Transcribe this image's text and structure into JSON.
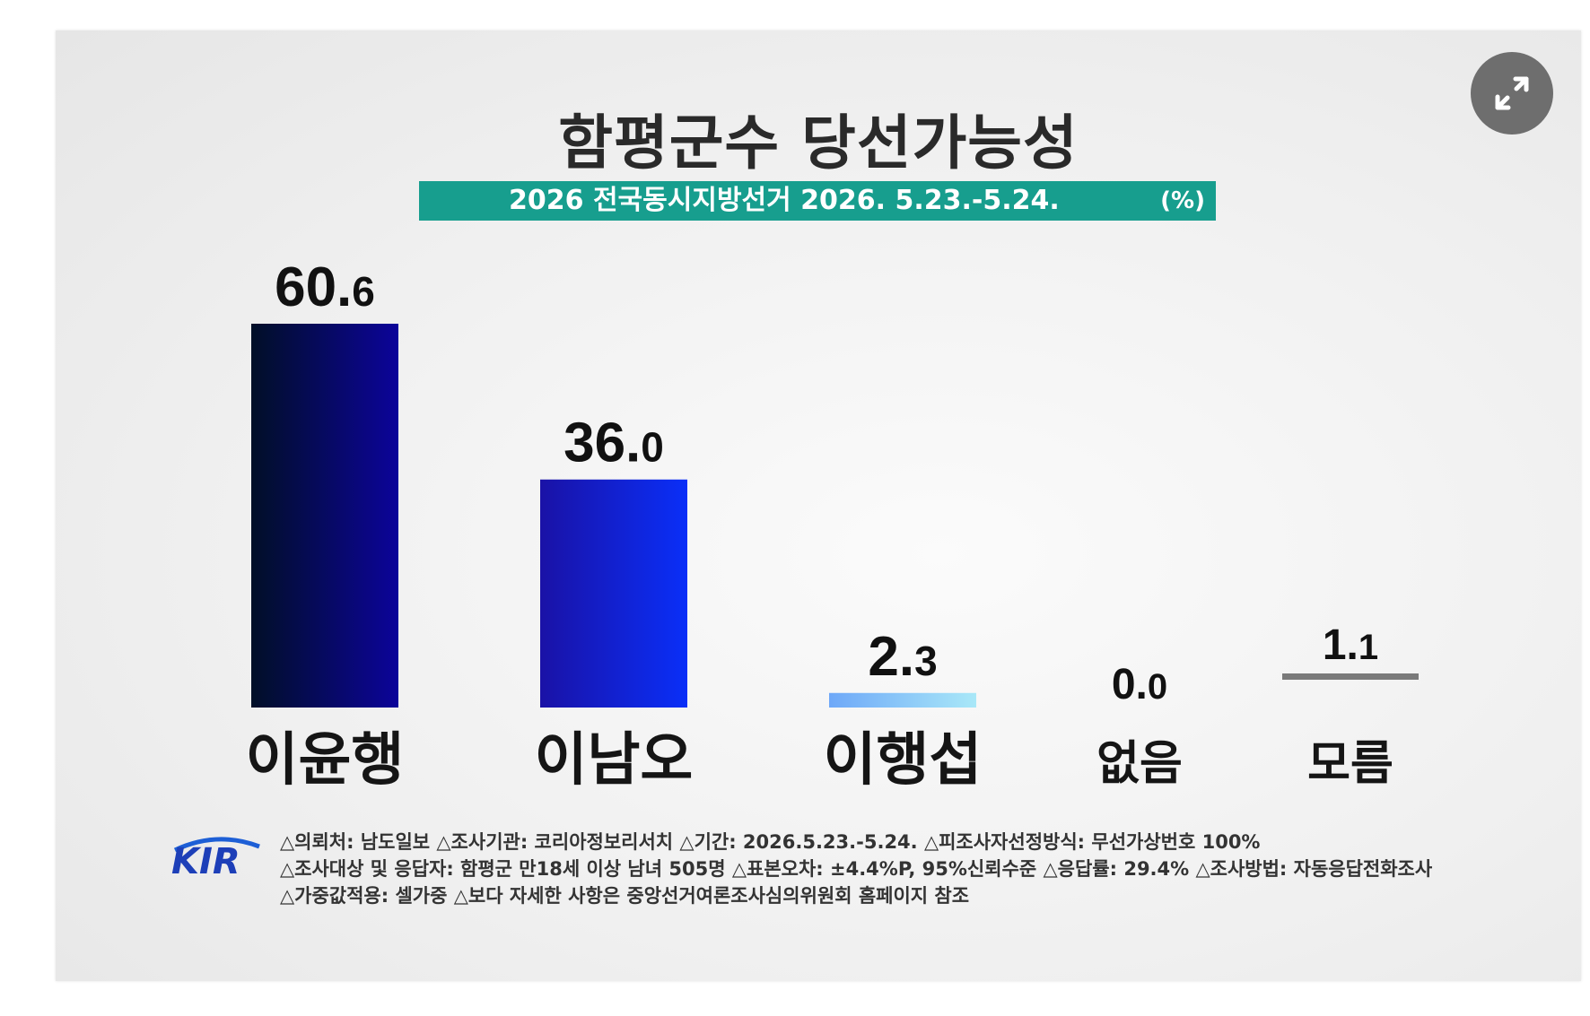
{
  "title": "함평군수 당선가능성",
  "subtitle": "2026 전국동시지방선거 2026. 5.23.-5.24.",
  "unit": "(%)",
  "expand_icon": "expand-arrows-icon",
  "chart_data": {
    "type": "bar",
    "title": "함평군수 당선가능성",
    "subtitle": "2026 전국동시지방선거 2026. 5.23.-5.24.",
    "unit": "(%)",
    "categories": [
      "이윤행",
      "이남오",
      "이행섭",
      "없음",
      "모름"
    ],
    "values": [
      60.6,
      36.0,
      2.3,
      0.0,
      1.1
    ],
    "value_labels": [
      {
        "int": "60.",
        "dec": "6"
      },
      {
        "int": "36.",
        "dec": "0"
      },
      {
        "int": "2.",
        "dec": "3"
      },
      {
        "int": "0.",
        "dec": "0"
      },
      {
        "int": "1.",
        "dec": "1"
      }
    ],
    "colors": [
      {
        "from": "#010f27",
        "to": "#0c049a"
      },
      {
        "from": "#1a12a6",
        "to": "#0a2ff8"
      },
      {
        "from": "#6ea8f8",
        "to": "#a9e8f8"
      },
      {
        "from": "#c8c8c8",
        "to": "#c8c8c8"
      },
      {
        "from": "#7a7a7a",
        "to": "#7a7a7a"
      }
    ],
    "ylim": [
      0,
      60.6
    ],
    "xlabel": "",
    "ylabel": "",
    "legend": "none",
    "grid": false
  },
  "footer": {
    "logo_text": "KIR",
    "lines": [
      "△의뢰처: 남도일보  △조사기관: 코리아정보리서치  △기간: 2026.5.23.-5.24.  △피조사자선정방식: 무선가상번호 100%",
      "△조사대상 및 응답자: 함평군 만18세 이상 남녀 505명  △표본오차: ±4.4%P, 95%신뢰수준  △응답률: 29.4%  △조사방법: 자동응답전화조사",
      "△가중값적용: 셀가중  △보다 자세한 사항은 중앙선거여론조사심의위원회 홈페이지 참조"
    ]
  }
}
